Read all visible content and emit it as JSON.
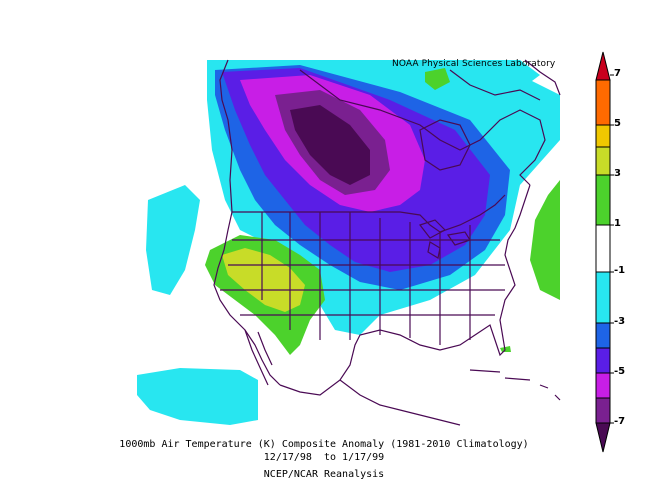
{
  "credit": "NOAA Physical Sciences Laboratory",
  "caption": {
    "line1": "1000mb Air Temperature (K) Composite Anomaly (1981-2010 Climatology)",
    "line2": "12/17/98  to 1/17/99",
    "line3": "NCEP/NCAR Reanalysis"
  },
  "colorbar": {
    "ticks": [
      "7",
      "5",
      "3",
      "1",
      "-1",
      "-3",
      "-5",
      "-7"
    ],
    "bins": [
      {
        "range": "5 to 7+",
        "color": "#c8001e"
      },
      {
        "range": "5 to 7",
        "color": "#ff6a00"
      },
      {
        "range": "3 to 5",
        "color": "#f0c800"
      },
      {
        "range": "1 to 3 high",
        "color": "#c8dc28"
      },
      {
        "range": "1 to 3",
        "color": "#4cd22c"
      },
      {
        "range": "-1 to 1",
        "color": "#ffffff"
      },
      {
        "range": "-3 to -1",
        "color": "#28e6f0"
      },
      {
        "range": "-3 to -1 dark",
        "color": "#1e64e6"
      },
      {
        "range": "-5 to -3",
        "color": "#5a1ee6"
      },
      {
        "range": "-5 to -7",
        "color": "#c81ee6"
      },
      {
        "range": "< -7",
        "color": "#5a0a64"
      }
    ]
  }
}
